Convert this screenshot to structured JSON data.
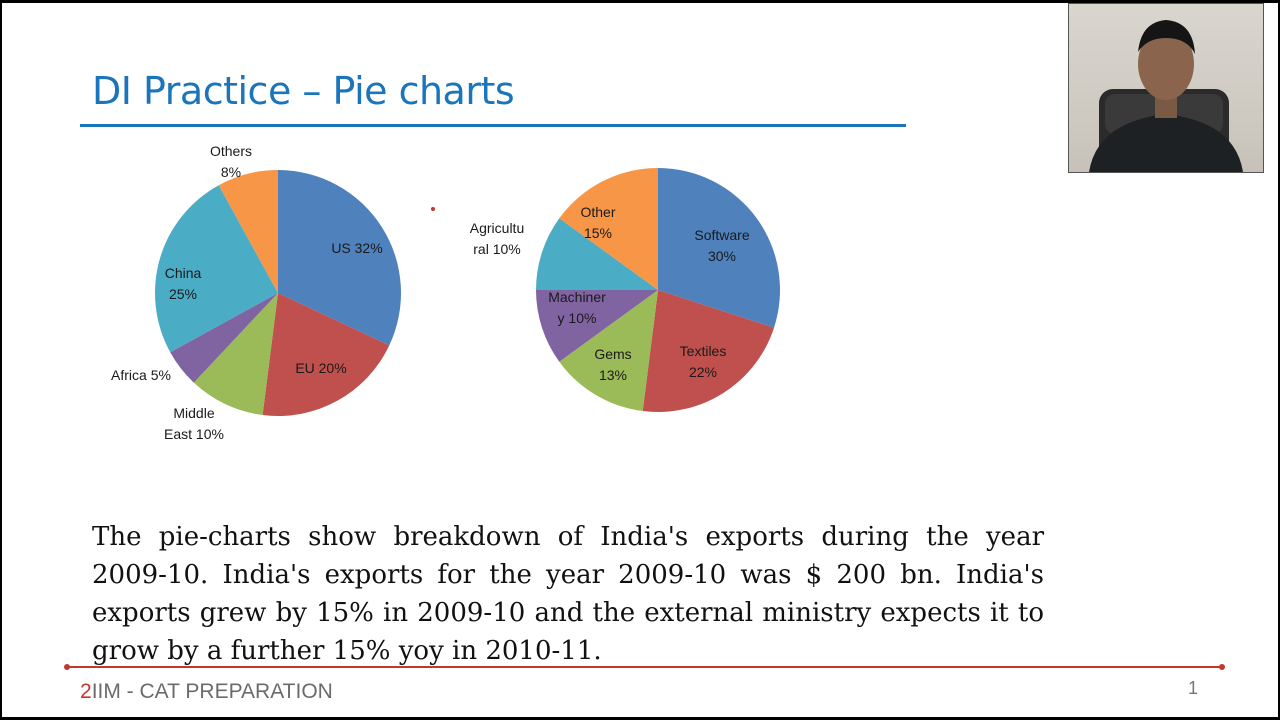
{
  "slide_title": "DI Practice – Pie charts",
  "paragraph": "The pie-charts show breakdown of India's exports during the year 2009-10. India's exports for the year 2009-10 was $ 200 bn. India's exports grew by 15% in 2009-10 and the external ministry expects it to grow by a further 15% yoy in 2010-11.",
  "footer": {
    "brand_num": "2",
    "brand_text": "IIM - CAT PREPARATION",
    "page_number": "1"
  },
  "colors": {
    "title_blue": "#1b75bb",
    "accent_red": "#c0392b"
  },
  "chart_data": [
    {
      "type": "pie",
      "slices": [
        {
          "name": "US",
          "value": 32,
          "color": "#4f81bd",
          "label_lines": [
            "US 32%"
          ]
        },
        {
          "name": "EU",
          "value": 20,
          "color": "#c0504d",
          "label_lines": [
            "EU 20%"
          ]
        },
        {
          "name": "Middle East",
          "value": 10,
          "color": "#9bbb59",
          "label_lines": [
            "Middle",
            "East 10%"
          ]
        },
        {
          "name": "Africa",
          "value": 5,
          "color": "#8064a2",
          "label_lines": [
            "Africa 5%"
          ]
        },
        {
          "name": "China",
          "value": 25,
          "color": "#4bacc6",
          "label_lines": [
            "China",
            "25%"
          ]
        },
        {
          "name": "Others",
          "value": 8,
          "color": "#f79646",
          "label_lines": [
            "Others",
            "8%"
          ]
        }
      ]
    },
    {
      "type": "pie",
      "slices": [
        {
          "name": "Software",
          "value": 30,
          "color": "#4f81bd",
          "label_lines": [
            "Software",
            "30%"
          ]
        },
        {
          "name": "Textiles",
          "value": 22,
          "color": "#c0504d",
          "label_lines": [
            "Textiles",
            "22%"
          ]
        },
        {
          "name": "Gems",
          "value": 13,
          "color": "#9bbb59",
          "label_lines": [
            "Gems",
            "13%"
          ]
        },
        {
          "name": "Machinery",
          "value": 10,
          "color": "#8064a2",
          "label_lines": [
            "Machiner",
            "y 10%"
          ]
        },
        {
          "name": "Agricultural",
          "value": 10,
          "color": "#4bacc6",
          "label_lines": [
            "Agricultu",
            "ral 10%"
          ]
        },
        {
          "name": "Other",
          "value": 15,
          "color": "#f79646",
          "label_lines": [
            "Other",
            "15%"
          ]
        }
      ]
    }
  ]
}
